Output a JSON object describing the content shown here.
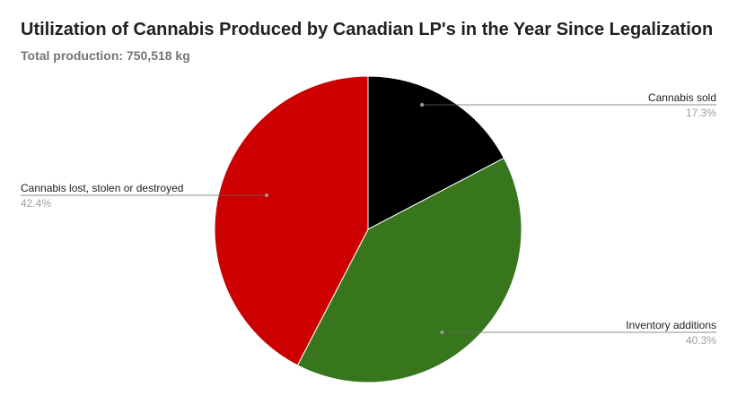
{
  "chart_data": {
    "type": "pie",
    "title": "Utilization of Cannabis Produced by Canadian LP's in the Year Since Legalization",
    "subtitle": "Total production: 750,518 kg",
    "legend": "none",
    "slices": [
      {
        "label": "Cannabis sold",
        "value": 17.3,
        "percent_label": "17.3%",
        "color": "#000000"
      },
      {
        "label": "Inventory additions",
        "value": 40.3,
        "percent_label": "40.3%",
        "color": "#38761d"
      },
      {
        "label": "Cannabis lost, stolen or destroyed",
        "value": 42.4,
        "percent_label": "42.4%",
        "color": "#cc0000"
      }
    ]
  }
}
